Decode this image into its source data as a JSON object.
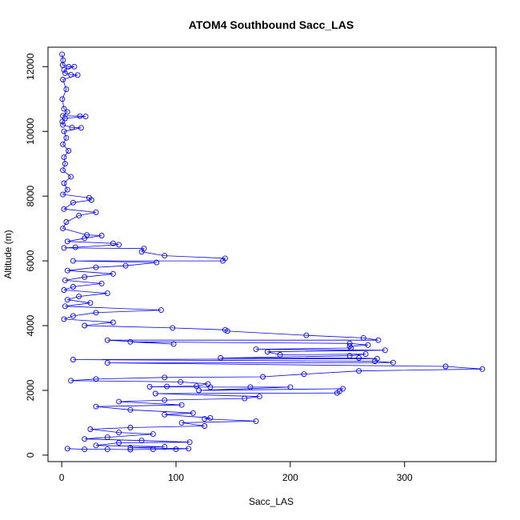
{
  "chart_data": {
    "type": "scatter",
    "title": "ATOM4 Southbound Sacc_LAS",
    "xlabel": "Sacc_LAS",
    "ylabel": "Altitude (m)",
    "xlim": [
      -12,
      380
    ],
    "ylim": [
      -200,
      12600
    ],
    "xticks": [
      0,
      100,
      200,
      300
    ],
    "yticks": [
      0,
      2000,
      4000,
      6000,
      8000,
      10000,
      12000
    ],
    "xtick_labels": [
      "0",
      "100",
      "200",
      "300"
    ],
    "ytick_labels": [
      "0",
      "2000",
      "4000",
      "6000",
      "8000",
      "10000",
      "12000"
    ],
    "grid": false,
    "legend": "none",
    "marker": "open-circle",
    "connected": true,
    "color": "#0000ff",
    "series": [
      {
        "points": [
          [
            0.3,
            12380
          ],
          [
            1.2,
            12200
          ],
          [
            0.8,
            12050
          ],
          [
            6,
            12000
          ],
          [
            11,
            12000
          ],
          [
            2,
            11900
          ],
          [
            3,
            11800
          ],
          [
            8,
            11750
          ],
          [
            14,
            11740
          ],
          [
            1,
            11600
          ],
          [
            4,
            11300
          ],
          [
            0.5,
            11000
          ],
          [
            2,
            10700
          ],
          [
            5,
            10600
          ],
          [
            1,
            10480
          ],
          [
            16,
            10470
          ],
          [
            21,
            10460
          ],
          [
            3,
            10400
          ],
          [
            0.5,
            10300
          ],
          [
            1,
            10200
          ],
          [
            9,
            10120
          ],
          [
            17,
            10110
          ],
          [
            2,
            10000
          ],
          [
            4,
            9800
          ],
          [
            1,
            9600
          ],
          [
            6,
            9400
          ],
          [
            2,
            9200
          ],
          [
            3,
            9000
          ],
          [
            1,
            8800
          ],
          [
            8,
            8600
          ],
          [
            2,
            8400
          ],
          [
            5,
            8200
          ],
          [
            1,
            8050
          ],
          [
            24,
            7950
          ],
          [
            26,
            7880
          ],
          [
            10,
            7800
          ],
          [
            2,
            7600
          ],
          [
            30,
            7500
          ],
          [
            15,
            7400
          ],
          [
            4,
            7200
          ],
          [
            1,
            7000
          ],
          [
            22,
            6800
          ],
          [
            35,
            6780
          ],
          [
            20,
            6700
          ],
          [
            5,
            6600
          ],
          [
            45,
            6540
          ],
          [
            50,
            6500
          ],
          [
            12,
            6420
          ],
          [
            2,
            6400
          ],
          [
            72,
            6380
          ],
          [
            70,
            6280
          ],
          [
            90,
            6160
          ],
          [
            143,
            6080
          ],
          [
            141,
            6000
          ],
          [
            10,
            6000
          ],
          [
            83,
            5950
          ],
          [
            56,
            5850
          ],
          [
            30,
            5800
          ],
          [
            5,
            5700
          ],
          [
            45,
            5600
          ],
          [
            20,
            5500
          ],
          [
            3,
            5400
          ],
          [
            35,
            5300
          ],
          [
            10,
            5200
          ],
          [
            2,
            5100
          ],
          [
            40,
            5000
          ],
          [
            15,
            4900
          ],
          [
            5,
            4800
          ],
          [
            25,
            4700
          ],
          [
            3,
            4600
          ],
          [
            87,
            4480
          ],
          [
            30,
            4400
          ],
          [
            10,
            4300
          ],
          [
            2,
            4200
          ],
          [
            45,
            4100
          ],
          [
            20,
            4000
          ],
          [
            97,
            3930
          ],
          [
            143,
            3870
          ],
          [
            145,
            3830
          ],
          [
            214,
            3700
          ],
          [
            264,
            3620
          ],
          [
            277,
            3550
          ],
          [
            40,
            3550
          ],
          [
            98,
            3430
          ],
          [
            60,
            3500
          ],
          [
            252,
            3450
          ],
          [
            268,
            3400
          ],
          [
            252,
            3360
          ],
          [
            253,
            3310
          ],
          [
            170,
            3270
          ],
          [
            283,
            3240
          ],
          [
            180,
            3190
          ],
          [
            191,
            3100
          ],
          [
            266,
            3120
          ],
          [
            252,
            3070
          ],
          [
            139,
            3000
          ],
          [
            260,
            3000
          ],
          [
            276,
            2980
          ],
          [
            10,
            2950
          ],
          [
            274,
            2900
          ],
          [
            290,
            2860
          ],
          [
            40,
            2850
          ],
          [
            336,
            2740
          ],
          [
            368,
            2660
          ],
          [
            260,
            2600
          ],
          [
            212,
            2500
          ],
          [
            176,
            2420
          ],
          [
            90,
            2400
          ],
          [
            30,
            2350
          ],
          [
            8,
            2300
          ],
          [
            104,
            2260
          ],
          [
            128,
            2200
          ],
          [
            118,
            2130
          ],
          [
            92,
            2120
          ],
          [
            77,
            2110
          ],
          [
            130,
            2100
          ],
          [
            165,
            2100
          ],
          [
            200,
            2100
          ],
          [
            120,
            2000
          ],
          [
            246,
            2050
          ],
          [
            243,
            1970
          ],
          [
            241,
            1920
          ],
          [
            82,
            1900
          ],
          [
            173,
            1810
          ],
          [
            160,
            1750
          ],
          [
            90,
            1700
          ],
          [
            50,
            1650
          ],
          [
            105,
            1550
          ],
          [
            30,
            1500
          ],
          [
            60,
            1400
          ],
          [
            115,
            1300
          ],
          [
            90,
            1250
          ],
          [
            130,
            1150
          ],
          [
            125,
            1120
          ],
          [
            170,
            1050
          ],
          [
            105,
            1000
          ],
          [
            125,
            900
          ],
          [
            60,
            850
          ],
          [
            25,
            800
          ],
          [
            50,
            700
          ],
          [
            80,
            650
          ],
          [
            40,
            550
          ],
          [
            20,
            500
          ],
          [
            70,
            450
          ],
          [
            112,
            400
          ],
          [
            50,
            380
          ],
          [
            30,
            300
          ],
          [
            90,
            260
          ],
          [
            60,
            230
          ],
          [
            111,
            200
          ],
          [
            100,
            180
          ],
          [
            80,
            180
          ],
          [
            60,
            170
          ],
          [
            40,
            180
          ],
          [
            20,
            180
          ],
          [
            5,
            200
          ]
        ]
      }
    ]
  }
}
